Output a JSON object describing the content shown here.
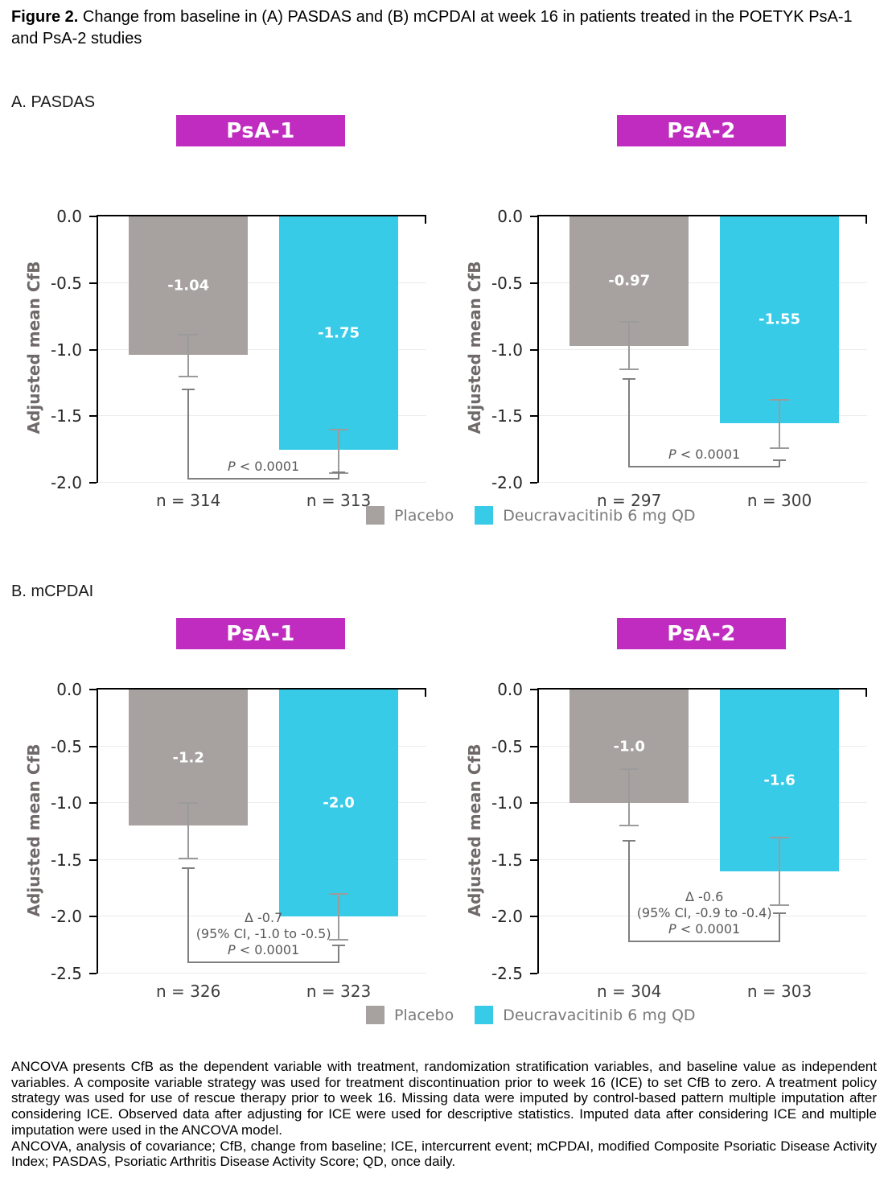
{
  "figure": {
    "title_bold": "Figure 2.",
    "title_rest": " Change from baseline in (A) PASDAS and (B) mCPDAI at week 16 in patients treated in the POETYK PsA-1 and PsA-2 studies"
  },
  "panel_a_label": "A. PASDAS",
  "panel_b_label": "B. mCPDAI",
  "legend": {
    "items": [
      {
        "label": "Placebo"
      },
      {
        "label": "Deucravacitinib 6 mg QD"
      }
    ]
  },
  "colors": {
    "placebo": "#A7A2A0",
    "deucravacitinib": "#38CBE8",
    "study_header_bg": "#BF2CBF",
    "error_bar": "#9B9B9B",
    "bracket": "#7F7F7F",
    "gridline": "#ECECEC",
    "axis": "#000000"
  },
  "footnote": {
    "p1": "ANCOVA presents CfB as the dependent variable with treatment, randomization stratification variables, and baseline value as independent variables. A composite variable strategy was used for treatment discontinuation prior to week 16 (ICE) to set CfB to zero. A treatment policy strategy was used for use of rescue therapy prior to week 16. Missing data were imputed by control-based pattern multiple imputation after considering ICE. Observed data after adjusting for ICE were used for descriptive statistics. Imputed data after considering ICE and multiple imputation were used in the ANCOVA model.",
    "p2": "ANCOVA, analysis of covariance; CfB, change from baseline; ICE, intercurrent event; mCPDAI, modified Composite Psoriatic Disease Activity Index; PASDAS, Psoriatic Arthritis Disease Activity Score; QD, once daily."
  },
  "chart_data": [
    {
      "type": "bar",
      "panel": "A",
      "title": "PsA-1",
      "ylabel": "Adjusted mean CfB",
      "ylim": [
        0,
        -2.0
      ],
      "yticks": [
        0,
        -0.5,
        -1.0,
        -1.5,
        -2.0
      ],
      "grid": true,
      "legend_position": "bottom",
      "categories": [
        "Placebo",
        "Deucravacitinib 6 mg QD"
      ],
      "values": [
        -1.04,
        -1.75
      ],
      "value_labels": [
        "-1.04",
        "-1.75"
      ],
      "n_labels": [
        "n = 314",
        "n = 313"
      ],
      "error_bars": [
        {
          "top": -0.89,
          "bottom": -1.2
        },
        {
          "top": -1.6,
          "bottom": -1.93
        }
      ],
      "comparison": {
        "left_top": -1.3,
        "line_y": -1.97,
        "right_top": -1.92,
        "lines": [
          {
            "italic": "P",
            "text": " < 0.0001"
          }
        ]
      }
    },
    {
      "type": "bar",
      "panel": "A",
      "title": "PsA-2",
      "ylabel": "Adjusted mean CfB",
      "ylim": [
        0,
        -2.0
      ],
      "yticks": [
        0,
        -0.5,
        -1.0,
        -1.5,
        -2.0
      ],
      "grid": true,
      "legend_position": "bottom",
      "categories": [
        "Placebo",
        "Deucravacitinib 6 mg QD"
      ],
      "values": [
        -0.97,
        -1.55
      ],
      "value_labels": [
        "-0.97",
        "-1.55"
      ],
      "n_labels": [
        "n = 297",
        "n = 300"
      ],
      "error_bars": [
        {
          "top": -0.79,
          "bottom": -1.15
        },
        {
          "top": -1.38,
          "bottom": -1.74
        }
      ],
      "comparison": {
        "left_top": -1.22,
        "line_y": -1.88,
        "right_top": -1.83,
        "lines": [
          {
            "italic": "P",
            "text": " < 0.0001"
          }
        ]
      }
    },
    {
      "type": "bar",
      "panel": "B",
      "title": "PsA-1",
      "ylabel": "Adjusted mean CfB",
      "ylim": [
        0,
        -2.5
      ],
      "yticks": [
        0,
        -0.5,
        -1.0,
        -1.5,
        -2.0,
        -2.5
      ],
      "grid": true,
      "legend_position": "bottom",
      "categories": [
        "Placebo",
        "Deucravacitinib 6 mg QD"
      ],
      "values": [
        -1.2,
        -2.0
      ],
      "value_labels": [
        "-1.2",
        "-2.0"
      ],
      "n_labels": [
        "n = 326",
        "n = 323"
      ],
      "error_bars": [
        {
          "top": -1.0,
          "bottom": -1.49
        },
        {
          "top": -1.8,
          "bottom": -2.2
        }
      ],
      "comparison": {
        "left_top": -1.57,
        "line_y": -2.4,
        "right_top": -2.25,
        "lines": [
          {
            "text": "Δ -0.7"
          },
          {
            "text": "(95% CI, -1.0 to -0.5)"
          },
          {
            "italic": "P",
            "text": " < 0.0001"
          }
        ]
      }
    },
    {
      "type": "bar",
      "panel": "B",
      "title": "PsA-2",
      "ylabel": "Adjusted mean CfB",
      "ylim": [
        0,
        -2.5
      ],
      "yticks": [
        0,
        -0.5,
        -1.0,
        -1.5,
        -2.0,
        -2.5
      ],
      "grid": true,
      "legend_position": "bottom",
      "categories": [
        "Placebo",
        "Deucravacitinib 6 mg QD"
      ],
      "values": [
        -1.0,
        -1.6
      ],
      "value_labels": [
        "-1.0",
        "-1.6"
      ],
      "n_labels": [
        "n = 304",
        "n = 303"
      ],
      "error_bars": [
        {
          "top": -0.7,
          "bottom": -1.2
        },
        {
          "top": -1.3,
          "bottom": -1.9
        }
      ],
      "comparison": {
        "left_top": -1.33,
        "line_y": -2.22,
        "right_top": -1.97,
        "lines": [
          {
            "text": "Δ -0.6"
          },
          {
            "text": "(95% CI, -0.9 to -0.4)"
          },
          {
            "italic": "P",
            "text": " < 0.0001"
          }
        ]
      }
    }
  ]
}
